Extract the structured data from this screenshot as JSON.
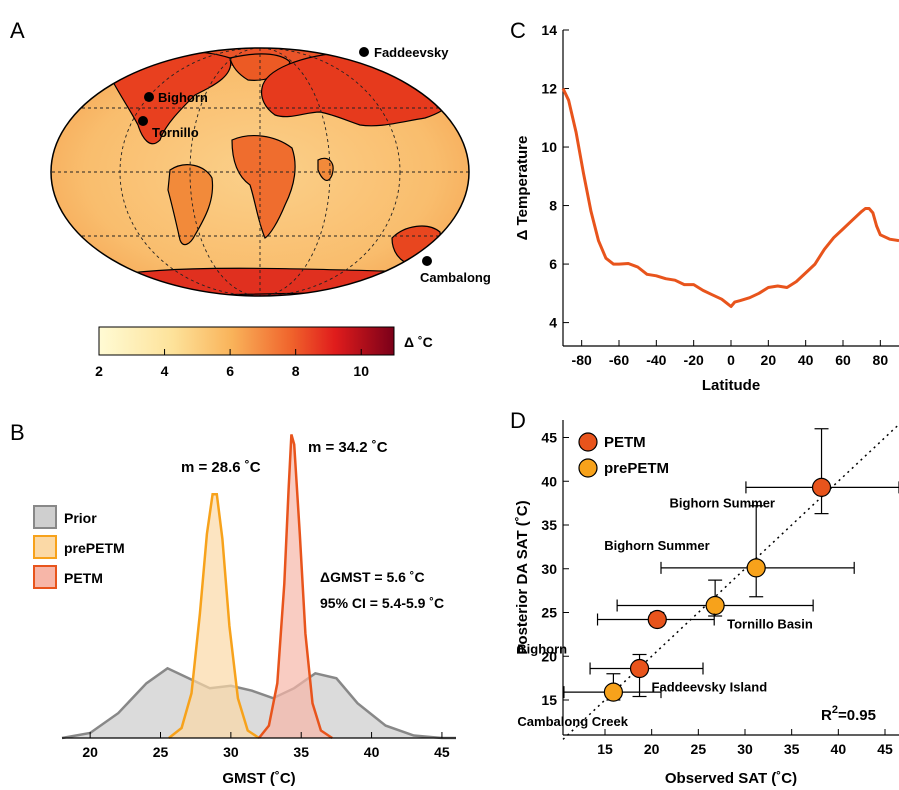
{
  "panels": {
    "a": "A",
    "b": "B",
    "c": "C",
    "d": "D"
  },
  "colors": {
    "petm": "#e8541c",
    "prepetm": "#f7a21b",
    "prior": "#888888",
    "map_low": "#fff4c4",
    "map_high": "#7a0019"
  },
  "map": {
    "sites": [
      "Faddeevsky",
      "Bighorn",
      "Tornillo",
      "Cambalong"
    ],
    "colorbar": {
      "label": "Δ ˚C",
      "ticks": [
        "2",
        "4",
        "6",
        "8",
        "10"
      ],
      "range": [
        2,
        11
      ]
    }
  },
  "chart_data": [
    {
      "panel": "B",
      "type": "area",
      "xlabel": "GMST (˚C)",
      "ylabel": "",
      "xlim": [
        18,
        46
      ],
      "xticks": [
        20,
        25,
        30,
        35,
        40,
        45
      ],
      "legend": {
        "placement": "left",
        "entries": [
          "Prior",
          "prePETM",
          "PETM"
        ]
      },
      "series": [
        {
          "name": "Prior",
          "x": [
            18,
            20,
            22,
            24,
            25.5,
            27,
            28.5,
            30,
            31.5,
            33,
            34.5,
            36,
            37.5,
            39,
            41,
            43,
            45,
            46
          ],
          "y": [
            0.0,
            0.02,
            0.1,
            0.22,
            0.28,
            0.24,
            0.2,
            0.21,
            0.19,
            0.16,
            0.2,
            0.26,
            0.24,
            0.14,
            0.05,
            0.01,
            0.0,
            0.0
          ]
        },
        {
          "name": "prePETM",
          "x": [
            25.6,
            26.5,
            27.2,
            27.8,
            28.3,
            28.7,
            29.0,
            29.4,
            29.9,
            30.5,
            31.2,
            32.0
          ],
          "y": [
            0.0,
            0.04,
            0.18,
            0.5,
            0.82,
            0.98,
            0.98,
            0.8,
            0.45,
            0.16,
            0.03,
            0.0
          ]
        },
        {
          "name": "PETM",
          "x": [
            32.0,
            32.7,
            33.3,
            33.8,
            34.1,
            34.3,
            34.5,
            34.9,
            35.3,
            35.8,
            36.4,
            37.2
          ],
          "y": [
            0.0,
            0.05,
            0.22,
            0.62,
            1.0,
            1.22,
            1.18,
            0.82,
            0.42,
            0.14,
            0.03,
            0.0
          ]
        }
      ],
      "annotations": {
        "pre_mean": "m = 28.6 ˚C",
        "petm_mean": "m = 34.2 ˚C",
        "dgmst": "ΔGMST = 5.6 ˚C",
        "ci": "95% CI = 5.4-5.9 ˚C"
      }
    },
    {
      "panel": "C",
      "type": "line",
      "xlabel": "Latitude",
      "ylabel": "Δ Temperature",
      "xlim": [
        -90,
        90
      ],
      "ylim": [
        3.2,
        14
      ],
      "xticks": [
        -80,
        -60,
        -40,
        -20,
        0,
        20,
        40,
        60,
        80
      ],
      "yticks": [
        4,
        6,
        8,
        10,
        12,
        14
      ],
      "series": [
        {
          "name": "",
          "x": [
            -90,
            -87,
            -83,
            -79,
            -75,
            -71,
            -67,
            -63,
            -60,
            -55,
            -50,
            -45,
            -40,
            -35,
            -30,
            -25,
            -20,
            -15,
            -10,
            -5,
            -2,
            0,
            2,
            5,
            10,
            15,
            20,
            25,
            30,
            35,
            40,
            45,
            50,
            55,
            60,
            65,
            70,
            72,
            74,
            76,
            78,
            80,
            85,
            90
          ],
          "y": [
            12.0,
            11.6,
            10.5,
            9.1,
            7.8,
            6.8,
            6.2,
            6.0,
            6.0,
            6.02,
            5.9,
            5.65,
            5.6,
            5.5,
            5.45,
            5.3,
            5.3,
            5.1,
            4.95,
            4.8,
            4.65,
            4.55,
            4.7,
            4.75,
            4.85,
            5.0,
            5.2,
            5.25,
            5.2,
            5.4,
            5.7,
            6.0,
            6.5,
            6.9,
            7.2,
            7.5,
            7.8,
            7.9,
            7.9,
            7.75,
            7.3,
            7.0,
            6.85,
            6.8
          ]
        }
      ]
    },
    {
      "panel": "D",
      "type": "scatter",
      "xlabel": "Observed SAT (˚C)",
      "ylabel": "Posterior DA SAT (˚C)",
      "xlim": [
        10.5,
        46.5
      ],
      "ylim": [
        11,
        47
      ],
      "xticks": [
        15,
        20,
        25,
        30,
        35,
        40,
        45
      ],
      "yticks": [
        15,
        20,
        25,
        30,
        35,
        40,
        45
      ],
      "legend": {
        "placement": "top-left",
        "entries": [
          "PETM",
          "prePETM"
        ]
      },
      "r2": "R",
      "r2_exp": "2",
      "r2_val": "=0.95",
      "points": [
        {
          "series": "PETM",
          "label": "Bighorn Summer",
          "x": 38.2,
          "y": 39.3,
          "xerr": [
            30.1,
            46.5
          ],
          "yerr": [
            36.3,
            46.0
          ]
        },
        {
          "series": "prePETM",
          "label": "Bighorn Summer",
          "x": 31.2,
          "y": 30.1,
          "xerr": [
            21.0,
            41.7
          ],
          "yerr": [
            26.8,
            37.2
          ]
        },
        {
          "series": "prePETM",
          "label": "Tornillo Basin",
          "x": 26.8,
          "y": 25.8,
          "xerr": [
            16.3,
            37.3
          ],
          "yerr": [
            24.6,
            28.7
          ]
        },
        {
          "series": "PETM",
          "label": "Bighorn",
          "x": 20.6,
          "y": 24.2,
          "xerr": [
            14.2,
            26.7
          ],
          "yerr": [
            23.5,
            25.0
          ]
        },
        {
          "series": "PETM",
          "label": "Faddeevsky Island",
          "x": 18.7,
          "y": 18.6,
          "xerr": [
            13.4,
            25.5
          ],
          "yerr": [
            15.4,
            20.2
          ]
        },
        {
          "series": "prePETM",
          "label": "Cambalong Creek",
          "x": 15.9,
          "y": 15.9,
          "xerr": [
            10.6,
            21.0
          ],
          "yerr": [
            15.0,
            18.0
          ]
        }
      ]
    }
  ]
}
